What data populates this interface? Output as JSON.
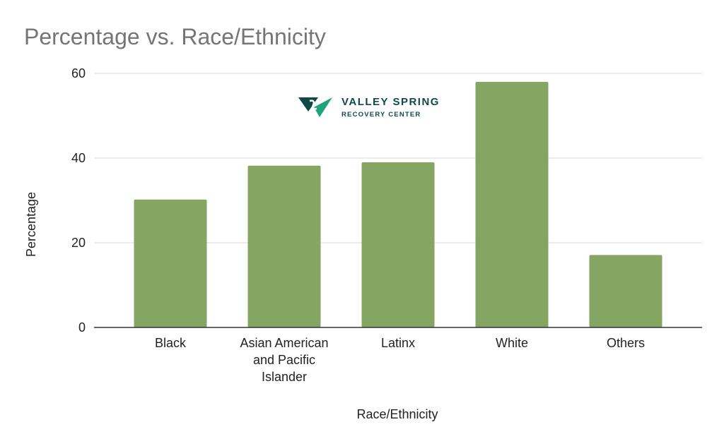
{
  "chart_data": {
    "type": "bar",
    "title": "Percentage vs. Race/Ethnicity",
    "xlabel": "Race/Ethnicity",
    "ylabel": "Percentage",
    "categories": [
      [
        "Black"
      ],
      [
        "Asian American",
        "and Pacific",
        "Islander"
      ],
      [
        "Latinx"
      ],
      [
        "White"
      ],
      [
        "Others"
      ]
    ],
    "values": [
      30.2,
      38.2,
      39.0,
      58.0,
      17.1
    ],
    "ylim": [
      0,
      60
    ],
    "yticks": [
      "0",
      "20",
      "40",
      "60"
    ],
    "grid": true,
    "bar_color": "#85a562"
  },
  "logo": {
    "name": "VALLEY SPRING",
    "subtitle": "RECOVERY CENTER",
    "colors": [
      "#0f4a44",
      "#1ea37a"
    ]
  }
}
